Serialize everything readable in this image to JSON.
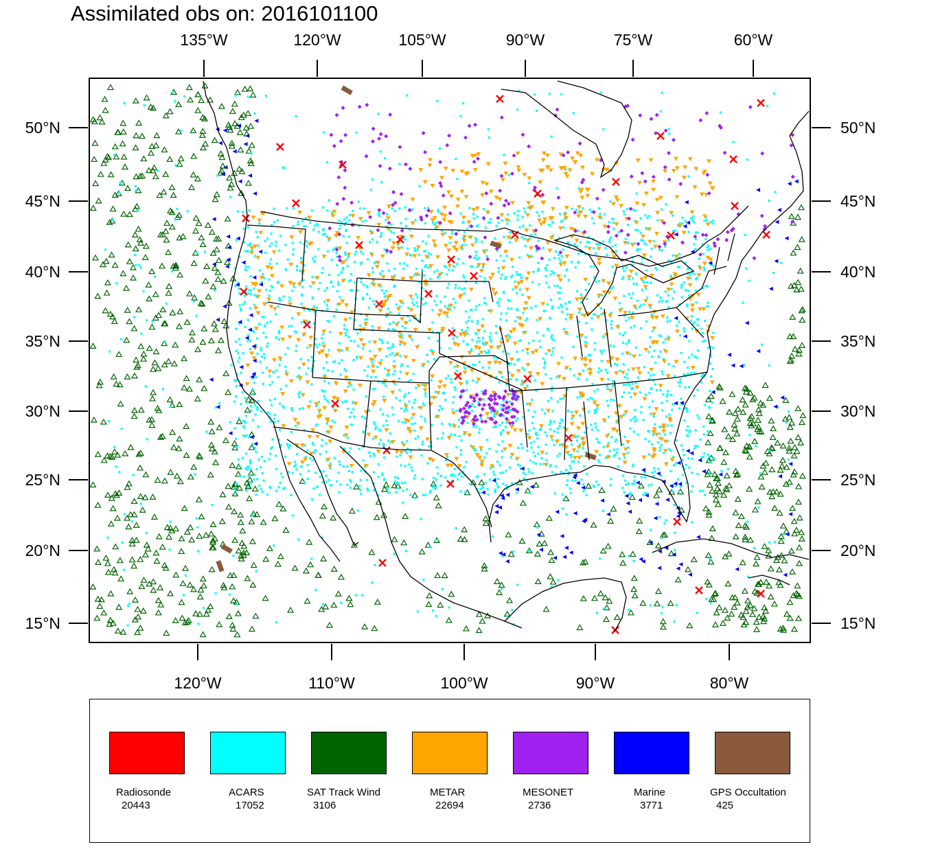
{
  "title": "Assimilated obs on: 2016101100",
  "axes": {
    "top_lon_labels": [
      "135°W",
      "120°W",
      "105°W",
      "90°W",
      "75°W",
      "60°W"
    ],
    "bottom_lon_labels": [
      "120°W",
      "110°W",
      "100°W",
      "90°W",
      "80°W"
    ],
    "lat_labels": [
      "50°N",
      "45°N",
      "40°N",
      "35°N",
      "30°N",
      "25°N",
      "20°N",
      "15°N"
    ]
  },
  "legend": [
    {
      "name": "Radiosonde",
      "count": "20443",
      "color": "#ff0000",
      "marker": "x-mark-icon"
    },
    {
      "name": "ACARS",
      "count": "17052",
      "color": "#00ffff",
      "marker": "dot-icon"
    },
    {
      "name": "SAT Track Wind",
      "count": "3106",
      "color": "#006400",
      "marker": "triangle-up-icon"
    },
    {
      "name": "METAR",
      "count": "22694",
      "color": "#ffa500",
      "marker": "triangle-down-icon"
    },
    {
      "name": "MESONET",
      "count": "2736",
      "color": "#a020f0",
      "marker": "diamond-icon"
    },
    {
      "name": "Marine",
      "count": "3771",
      "color": "#0000ff",
      "marker": "triangle-left-icon"
    },
    {
      "name": "GPS Occultation",
      "count": "425",
      "color": "#8b5a3c",
      "marker": "bar-icon"
    }
  ]
}
